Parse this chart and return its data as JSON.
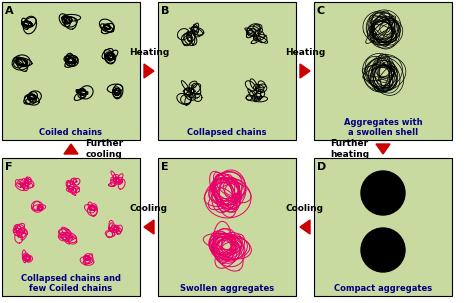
{
  "bg_color": "#c8daa0",
  "arrow_color": "#cc0000",
  "black_c": "#000000",
  "pink_c": "#e8006a",
  "panel_captions": {
    "A": "Coiled chains",
    "B": "Collapsed chains",
    "C": "Aggregates with\na swollen shell",
    "D": "Compact aggregates",
    "E": "Swollen aggregates",
    "F": "Collapsed chains and\nfew Coiled chains"
  },
  "figsize": [
    4.74,
    3.03
  ],
  "dpi": 100
}
